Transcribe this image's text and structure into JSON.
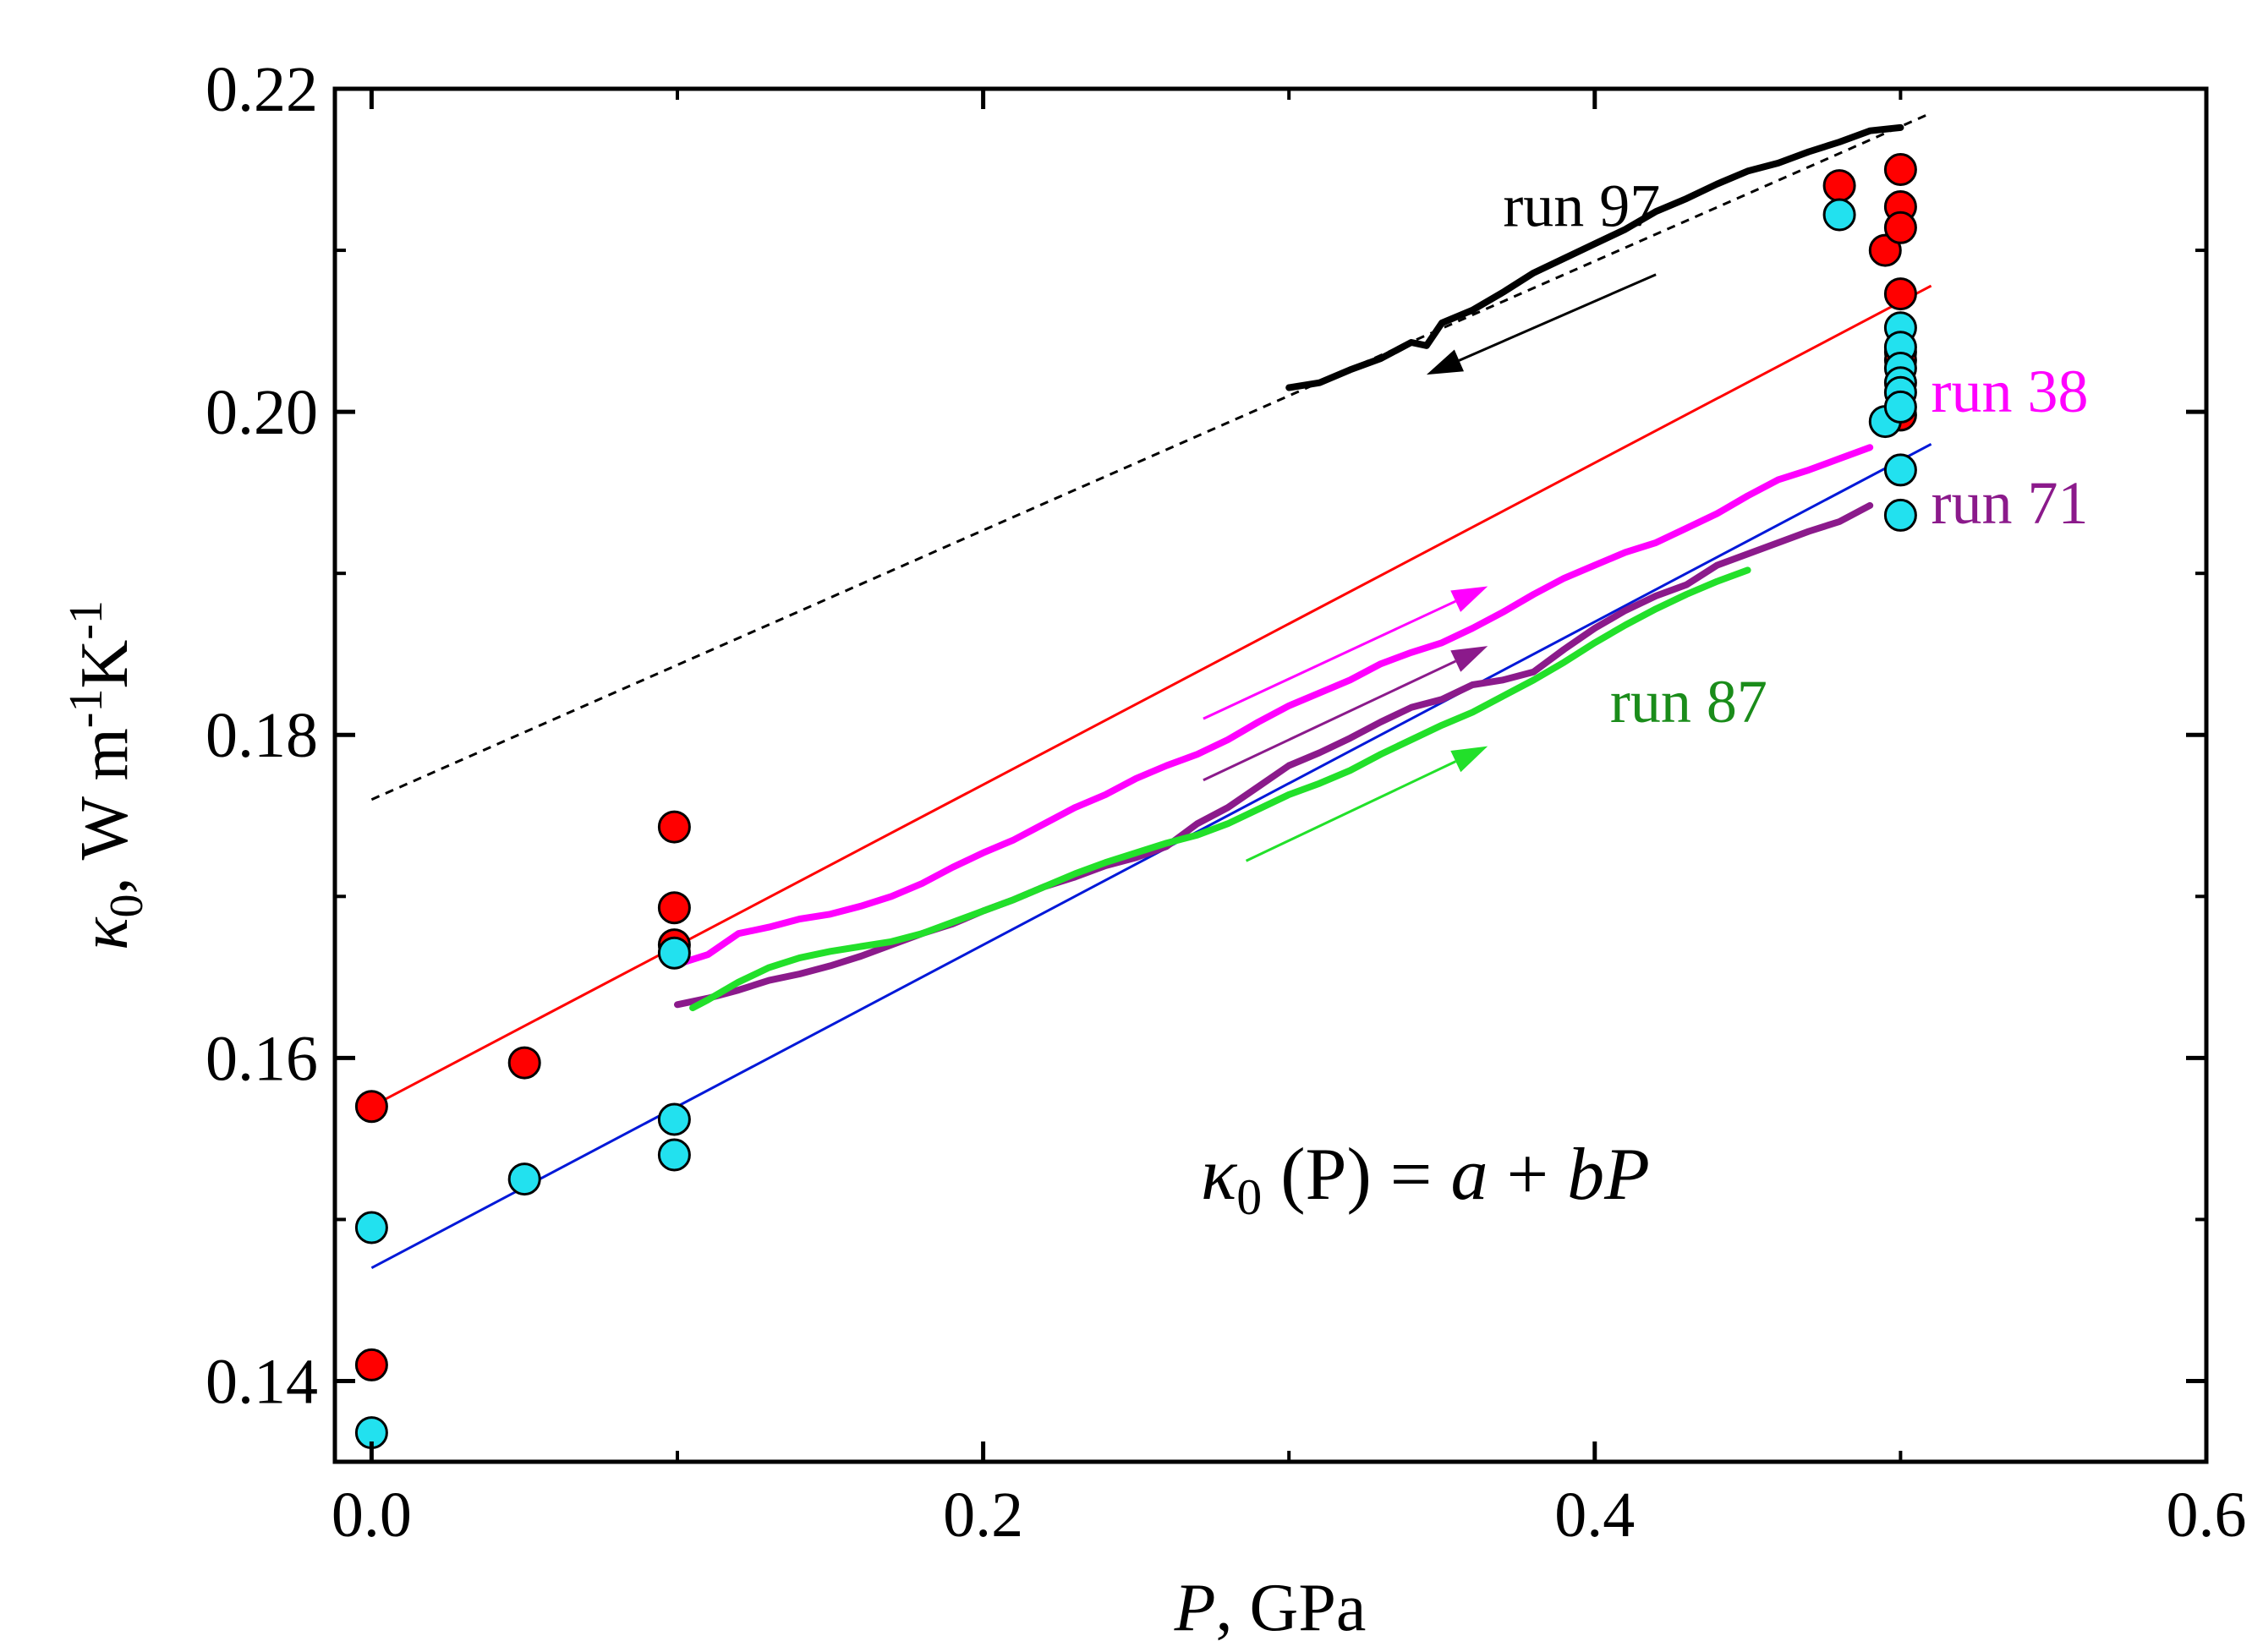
{
  "chart_data": {
    "type": "scatter",
    "title": "",
    "xlabel": {
      "symbol": "P",
      "unit": ", GPa"
    },
    "ylabel": {
      "symbol": "κ",
      "sub": "0",
      "unit": ", W m",
      "exp1": "-1",
      "unit2": "K",
      "exp2": "-1"
    },
    "xlim": [
      -0.012,
      0.6
    ],
    "ylim": [
      0.135,
      0.22
    ],
    "x_ticks": [
      0.0,
      0.2,
      0.4,
      0.6
    ],
    "x_tick_labels": [
      "0.0",
      "0.2",
      "0.4",
      "0.6"
    ],
    "y_ticks": [
      0.14,
      0.16,
      0.18,
      0.2,
      0.22
    ],
    "y_tick_labels": [
      "0.14",
      "0.16",
      "0.18",
      "0.20",
      "0.22"
    ],
    "equation": {
      "lhs": "κ",
      "sub": "0",
      "mid": " (P) = ",
      "a": "a",
      "plus": " + ",
      "b": "bP"
    },
    "colors": {
      "red": "#ff0000",
      "cyan": "#22e1ef",
      "black": "#000000",
      "magenta": "#ff00ff",
      "purple": "#8b1a8b",
      "green": "#22e02a",
      "dark_green": "#1a8c1a",
      "blue": "#0018d8"
    },
    "scatter_series": [
      {
        "name": "red points",
        "color": "#ff0000",
        "points": [
          [
            0.0,
            0.157
          ],
          [
            0.0,
            0.141
          ],
          [
            0.05,
            0.1597
          ],
          [
            0.099,
            0.1743
          ],
          [
            0.099,
            0.1693
          ],
          [
            0.099,
            0.167
          ],
          [
            0.48,
            0.214
          ],
          [
            0.495,
            0.21
          ],
          [
            0.5,
            0.215
          ],
          [
            0.5,
            0.2127
          ],
          [
            0.5,
            0.2114
          ],
          [
            0.5,
            0.2073
          ],
          [
            0.5,
            0.2037
          ],
          [
            0.5,
            0.2032
          ],
          [
            0.5,
            0.1998
          ]
        ]
      },
      {
        "name": "cyan points",
        "color": "#22e1ef",
        "points": [
          [
            0.0,
            0.1495
          ],
          [
            0.0,
            0.1368
          ],
          [
            0.05,
            0.1525
          ],
          [
            0.099,
            0.1665
          ],
          [
            0.099,
            0.1562
          ],
          [
            0.099,
            0.154
          ],
          [
            0.48,
            0.2122
          ],
          [
            0.495,
            0.1994
          ],
          [
            0.5,
            0.2052
          ],
          [
            0.5,
            0.204
          ],
          [
            0.5,
            0.2027
          ],
          [
            0.5,
            0.2018
          ],
          [
            0.5,
            0.2012
          ],
          [
            0.5,
            0.2003
          ],
          [
            0.5,
            0.1964
          ],
          [
            0.5,
            0.1936
          ]
        ]
      }
    ],
    "fit_lines": [
      {
        "name": "red fit",
        "color": "#ff0000",
        "style": "solid",
        "points": [
          [
            0.0,
            0.157
          ],
          [
            0.51,
            0.2078
          ]
        ]
      },
      {
        "name": "blue fit",
        "color": "#0018d8",
        "style": "solid",
        "points": [
          [
            0.0,
            0.147
          ],
          [
            0.51,
            0.198
          ]
        ]
      },
      {
        "name": "dashed fit",
        "color": "#000000",
        "style": "dashed",
        "points": [
          [
            0.0,
            0.176
          ],
          [
            0.51,
            0.2185
          ]
        ]
      }
    ],
    "run_series": [
      {
        "name": "run 97",
        "label": "run 97",
        "color": "#000000",
        "points": [
          [
            0.3,
            0.2015
          ],
          [
            0.31,
            0.2018
          ],
          [
            0.32,
            0.2026
          ],
          [
            0.33,
            0.2033
          ],
          [
            0.34,
            0.2043
          ],
          [
            0.345,
            0.2041
          ],
          [
            0.35,
            0.2055
          ],
          [
            0.36,
            0.2063
          ],
          [
            0.37,
            0.2074
          ],
          [
            0.38,
            0.2086
          ],
          [
            0.39,
            0.2095
          ],
          [
            0.4,
            0.2104
          ],
          [
            0.41,
            0.2113
          ],
          [
            0.42,
            0.2124
          ],
          [
            0.43,
            0.2132
          ],
          [
            0.44,
            0.2141
          ],
          [
            0.45,
            0.2149
          ],
          [
            0.46,
            0.2154
          ],
          [
            0.47,
            0.2161
          ],
          [
            0.48,
            0.2167
          ],
          [
            0.49,
            0.2174
          ],
          [
            0.5,
            0.2176
          ]
        ]
      },
      {
        "name": "run 38",
        "label": "run 38",
        "color": "#ff00ff",
        "points": [
          [
            0.1,
            0.1658
          ],
          [
            0.11,
            0.1664
          ],
          [
            0.12,
            0.1677
          ],
          [
            0.13,
            0.1681
          ],
          [
            0.14,
            0.1686
          ],
          [
            0.15,
            0.1689
          ],
          [
            0.16,
            0.1694
          ],
          [
            0.17,
            0.17
          ],
          [
            0.18,
            0.1708
          ],
          [
            0.19,
            0.1718
          ],
          [
            0.2,
            0.1727
          ],
          [
            0.21,
            0.1735
          ],
          [
            0.22,
            0.1745
          ],
          [
            0.23,
            0.1755
          ],
          [
            0.24,
            0.1763
          ],
          [
            0.25,
            0.1773
          ],
          [
            0.26,
            0.1781
          ],
          [
            0.27,
            0.1788
          ],
          [
            0.28,
            0.1797
          ],
          [
            0.29,
            0.1808
          ],
          [
            0.3,
            0.1818
          ],
          [
            0.31,
            0.1826
          ],
          [
            0.32,
            0.1834
          ],
          [
            0.33,
            0.1844
          ],
          [
            0.34,
            0.1851
          ],
          [
            0.35,
            0.1857
          ],
          [
            0.36,
            0.1866
          ],
          [
            0.37,
            0.1876
          ],
          [
            0.38,
            0.1887
          ],
          [
            0.39,
            0.1897
          ],
          [
            0.4,
            0.1905
          ],
          [
            0.41,
            0.1913
          ],
          [
            0.42,
            0.1919
          ],
          [
            0.43,
            0.1928
          ],
          [
            0.44,
            0.1937
          ],
          [
            0.45,
            0.1948
          ],
          [
            0.46,
            0.1958
          ],
          [
            0.47,
            0.1964
          ],
          [
            0.48,
            0.1971
          ],
          [
            0.49,
            0.1978
          ]
        ]
      },
      {
        "name": "run 71",
        "label": "run 71",
        "color": "#8b1a8b",
        "points": [
          [
            0.1,
            0.1633
          ],
          [
            0.11,
            0.1637
          ],
          [
            0.12,
            0.1642
          ],
          [
            0.13,
            0.1648
          ],
          [
            0.14,
            0.1652
          ],
          [
            0.15,
            0.1657
          ],
          [
            0.16,
            0.1663
          ],
          [
            0.17,
            0.167
          ],
          [
            0.18,
            0.1677
          ],
          [
            0.19,
            0.1683
          ],
          [
            0.2,
            0.1691
          ],
          [
            0.21,
            0.1698
          ],
          [
            0.22,
            0.1706
          ],
          [
            0.23,
            0.1712
          ],
          [
            0.24,
            0.1719
          ],
          [
            0.25,
            0.1724
          ],
          [
            0.26,
            0.1731
          ],
          [
            0.27,
            0.1745
          ],
          [
            0.28,
            0.1755
          ],
          [
            0.29,
            0.1768
          ],
          [
            0.3,
            0.1781
          ],
          [
            0.31,
            0.1789
          ],
          [
            0.32,
            0.1798
          ],
          [
            0.33,
            0.1808
          ],
          [
            0.34,
            0.1817
          ],
          [
            0.35,
            0.1822
          ],
          [
            0.36,
            0.1831
          ],
          [
            0.37,
            0.1834
          ],
          [
            0.38,
            0.1839
          ],
          [
            0.39,
            0.1853
          ],
          [
            0.4,
            0.1866
          ],
          [
            0.41,
            0.1877
          ],
          [
            0.42,
            0.1886
          ],
          [
            0.43,
            0.1893
          ],
          [
            0.44,
            0.1905
          ],
          [
            0.45,
            0.1912
          ],
          [
            0.46,
            0.1919
          ],
          [
            0.47,
            0.1926
          ],
          [
            0.48,
            0.1932
          ],
          [
            0.49,
            0.1942
          ]
        ]
      },
      {
        "name": "run 87",
        "label": "run 87",
        "label_color": "#1a8c1a",
        "color": "#22e02a",
        "points": [
          [
            0.105,
            0.1631
          ],
          [
            0.11,
            0.1636
          ],
          [
            0.12,
            0.1647
          ],
          [
            0.13,
            0.1656
          ],
          [
            0.14,
            0.1662
          ],
          [
            0.15,
            0.1666
          ],
          [
            0.16,
            0.1669
          ],
          [
            0.17,
            0.1672
          ],
          [
            0.18,
            0.1677
          ],
          [
            0.19,
            0.1684
          ],
          [
            0.2,
            0.1691
          ],
          [
            0.21,
            0.1698
          ],
          [
            0.22,
            0.1706
          ],
          [
            0.23,
            0.1714
          ],
          [
            0.24,
            0.1721
          ],
          [
            0.25,
            0.1727
          ],
          [
            0.26,
            0.1733
          ],
          [
            0.27,
            0.1738
          ],
          [
            0.28,
            0.1745
          ],
          [
            0.29,
            0.1754
          ],
          [
            0.3,
            0.1763
          ],
          [
            0.31,
            0.177
          ],
          [
            0.32,
            0.1778
          ],
          [
            0.33,
            0.1788
          ],
          [
            0.34,
            0.1797
          ],
          [
            0.35,
            0.1806
          ],
          [
            0.36,
            0.1814
          ],
          [
            0.37,
            0.1824
          ],
          [
            0.38,
            0.1834
          ],
          [
            0.39,
            0.1845
          ],
          [
            0.4,
            0.1857
          ],
          [
            0.41,
            0.1868
          ],
          [
            0.42,
            0.1878
          ],
          [
            0.43,
            0.1887
          ],
          [
            0.44,
            0.1895
          ],
          [
            0.45,
            0.1902
          ]
        ]
      }
    ],
    "arrows": [
      {
        "name": "run 97 arrow",
        "color": "#000000",
        "from": [
          0.42,
          0.2085
        ],
        "to": [
          0.345,
          0.2023
        ]
      },
      {
        "name": "run 38 arrow",
        "color": "#ff00ff",
        "from": [
          0.272,
          0.181
        ],
        "to": [
          0.365,
          0.1892
        ]
      },
      {
        "name": "run 71 arrow",
        "color": "#8b1a8b",
        "from": [
          0.272,
          0.1772
        ],
        "to": [
          0.365,
          0.1855
        ]
      },
      {
        "name": "run 87 arrow",
        "color": "#22e02a",
        "from": [
          0.286,
          0.1722
        ],
        "to": [
          0.365,
          0.1793
        ]
      }
    ],
    "series_labels": [
      {
        "text": "run 97",
        "color": "#000000",
        "at": [
          0.37,
          0.2115
        ]
      },
      {
        "text": "run 38",
        "color": "#ff00ff",
        "at": [
          0.51,
          0.2
        ]
      },
      {
        "text": "run 71",
        "color": "#8b1a8b",
        "at": [
          0.51,
          0.1931
        ]
      },
      {
        "text": "run 87",
        "color": "#1a8c1a",
        "at": [
          0.405,
          0.1808
        ]
      }
    ]
  }
}
